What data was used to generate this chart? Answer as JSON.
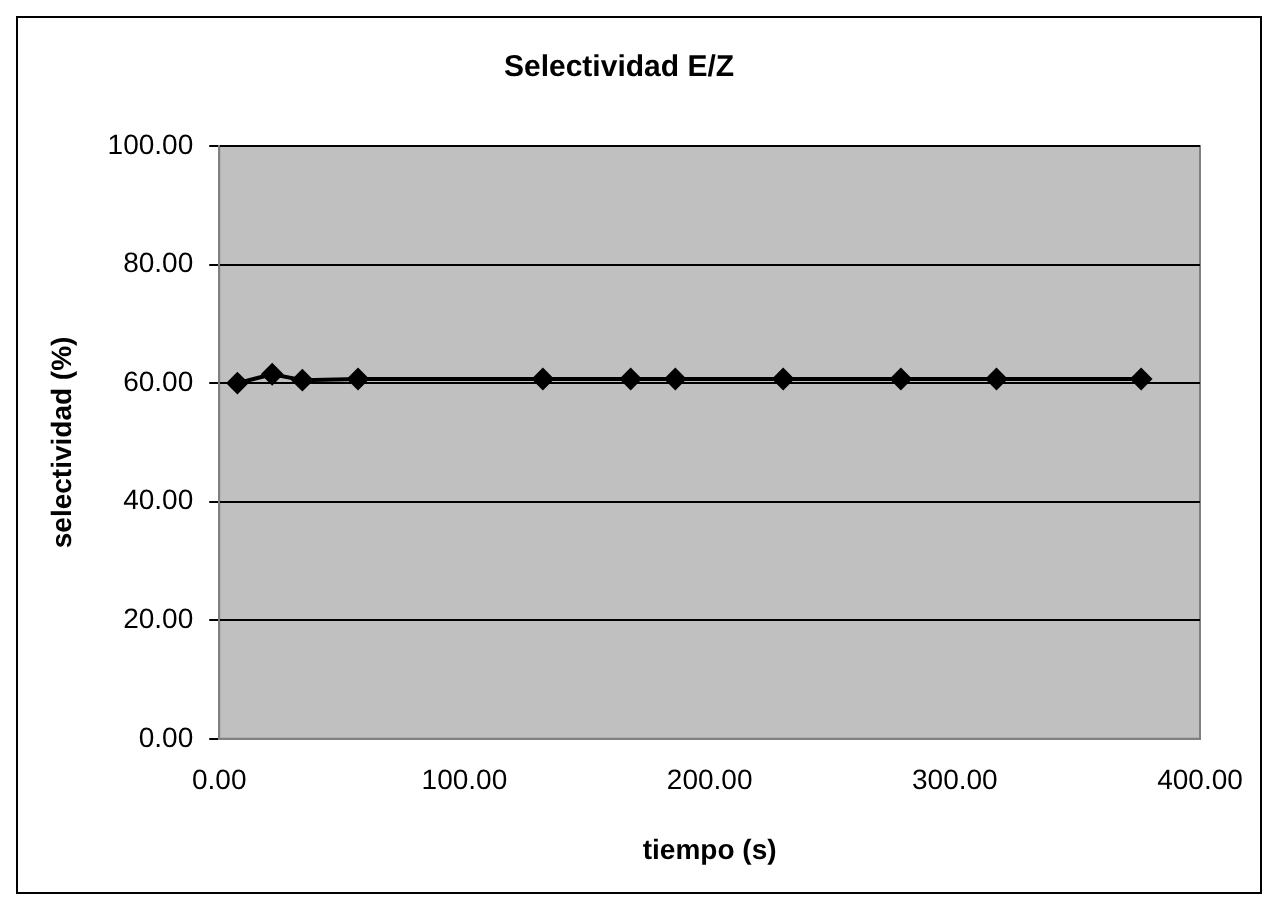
{
  "chart_data": {
    "type": "line",
    "title": "Selectividad E/Z",
    "xlabel": "tiempo (s)",
    "ylabel": "selectividad (%)",
    "x": [
      7.4,
      21.6,
      33.9,
      56.6,
      132,
      167.8,
      186,
      230,
      278,
      317,
      376
    ],
    "series": [
      {
        "color": "#000000",
        "values": [
          60.0,
          61.5,
          60.5,
          60.7,
          60.7,
          60.7,
          60.7,
          60.7,
          60.7,
          60.7,
          60.7
        ]
      }
    ],
    "xlim": [
      0,
      400
    ],
    "xticks": [
      {
        "value": 0,
        "label": "0.00"
      },
      {
        "value": 100,
        "label": "100.00"
      },
      {
        "value": 200,
        "label": "200.00"
      },
      {
        "value": 300,
        "label": "300.00"
      },
      {
        "value": 400,
        "label": "400.00"
      }
    ],
    "ylim": [
      0,
      100
    ],
    "yticks": [
      {
        "value": 0,
        "label": "0.00"
      },
      {
        "value": 20,
        "label": "20.00"
      },
      {
        "value": 40,
        "label": "40.00"
      },
      {
        "value": 60,
        "label": "60.00"
      },
      {
        "value": 80,
        "label": "80.00"
      },
      {
        "value": 100,
        "label": "100.00"
      }
    ],
    "grid": "y",
    "legend": false,
    "marker": "diamond",
    "line_style": "solid"
  }
}
